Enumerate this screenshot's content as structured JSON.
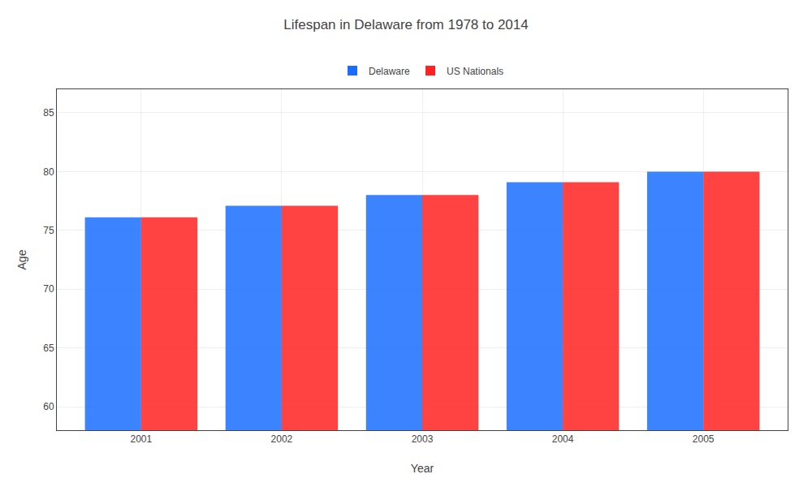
{
  "chart_data": {
    "type": "bar",
    "title": "Lifespan in Delaware from 1978 to 2014",
    "xlabel": "Year",
    "ylabel": "Age",
    "categories": [
      "2001",
      "2002",
      "2003",
      "2004",
      "2005"
    ],
    "series": [
      {
        "name": "Delaware",
        "color": "#1a6dff",
        "values": [
          76.1,
          77.1,
          78.0,
          79.1,
          80.0
        ]
      },
      {
        "name": "US Nationals",
        "color": "#ff2222",
        "values": [
          76.1,
          77.1,
          78.0,
          79.1,
          80.0
        ]
      }
    ],
    "ylim": [
      58,
      87
    ],
    "yticks": [
      60,
      65,
      70,
      75,
      80,
      85
    ],
    "grid": true,
    "legend": "top"
  }
}
